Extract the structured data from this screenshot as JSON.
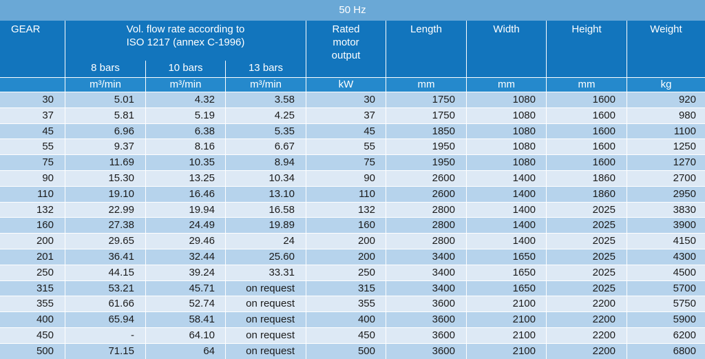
{
  "table": {
    "frequency": "50 Hz",
    "headers": {
      "gear": "GEAR",
      "flow_line1": "Vol. flow rate according to",
      "flow_line2": "ISO 1217 (annex C-1996)",
      "bar8": "8 bars",
      "bar10": "10 bars",
      "bar13": "13 bars",
      "motor_line1": "Rated",
      "motor_line2": "motor",
      "motor_line3": "output",
      "length": "Length",
      "width": "Width",
      "height": "Height",
      "weight": "Weight"
    },
    "units": {
      "flow8": "m³/min",
      "flow10": "m³/min",
      "flow13": "m³/min",
      "motor": "kW",
      "length": "mm",
      "width": "mm",
      "height": "mm",
      "weight": "kg"
    },
    "rows": [
      {
        "gear": "30",
        "f8": "5.01",
        "f10": "4.32",
        "f13": "3.58",
        "kw": "30",
        "length": "1750",
        "width": "1080",
        "height": "1600",
        "weight": "920"
      },
      {
        "gear": "37",
        "f8": "5.81",
        "f10": "5.19",
        "f13": "4.25",
        "kw": "37",
        "length": "1750",
        "width": "1080",
        "height": "1600",
        "weight": "980"
      },
      {
        "gear": "45",
        "f8": "6.96",
        "f10": "6.38",
        "f13": "5.35",
        "kw": "45",
        "length": "1850",
        "width": "1080",
        "height": "1600",
        "weight": "1100"
      },
      {
        "gear": "55",
        "f8": "9.37",
        "f10": "8.16",
        "f13": "6.67",
        "kw": "55",
        "length": "1950",
        "width": "1080",
        "height": "1600",
        "weight": "1250"
      },
      {
        "gear": "75",
        "f8": "11.69",
        "f10": "10.35",
        "f13": "8.94",
        "kw": "75",
        "length": "1950",
        "width": "1080",
        "height": "1600",
        "weight": "1270"
      },
      {
        "gear": "90",
        "f8": "15.30",
        "f10": "13.25",
        "f13": "10.34",
        "kw": "90",
        "length": "2600",
        "width": "1400",
        "height": "1860",
        "weight": "2700"
      },
      {
        "gear": "110",
        "f8": "19.10",
        "f10": "16.46",
        "f13": "13.10",
        "kw": "110",
        "length": "2600",
        "width": "1400",
        "height": "1860",
        "weight": "2950"
      },
      {
        "gear": "132",
        "f8": "22.99",
        "f10": "19.94",
        "f13": "16.58",
        "kw": "132",
        "length": "2800",
        "width": "1400",
        "height": "2025",
        "weight": "3830"
      },
      {
        "gear": "160",
        "f8": "27.38",
        "f10": "24.49",
        "f13": "19.89",
        "kw": "160",
        "length": "2800",
        "width": "1400",
        "height": "2025",
        "weight": "3900"
      },
      {
        "gear": "200",
        "f8": "29.65",
        "f10": "29.46",
        "f13": "24",
        "kw": "200",
        "length": "2800",
        "width": "1400",
        "height": "2025",
        "weight": "4150"
      },
      {
        "gear": "201",
        "f8": "36.41",
        "f10": "32.44",
        "f13": "25.60",
        "kw": "200",
        "length": "3400",
        "width": "1650",
        "height": "2025",
        "weight": "4300"
      },
      {
        "gear": "250",
        "f8": "44.15",
        "f10": "39.24",
        "f13": "33.31",
        "kw": "250",
        "length": "3400",
        "width": "1650",
        "height": "2025",
        "weight": "4500"
      },
      {
        "gear": "315",
        "f8": "53.21",
        "f10": "45.71",
        "f13": "on request",
        "kw": "315",
        "length": "3400",
        "width": "1650",
        "height": "2025",
        "weight": "5700"
      },
      {
        "gear": "355",
        "f8": "61.66",
        "f10": "52.74",
        "f13": "on request",
        "kw": "355",
        "length": "3600",
        "width": "2100",
        "height": "2200",
        "weight": "5750"
      },
      {
        "gear": "400",
        "f8": "65.94",
        "f10": "58.41",
        "f13": "on request",
        "kw": "400",
        "length": "3600",
        "width": "2100",
        "height": "2200",
        "weight": "5900"
      },
      {
        "gear": "450",
        "f8": "-",
        "f10": "64.10",
        "f13": "on request",
        "kw": "450",
        "length": "3600",
        "width": "2100",
        "height": "2200",
        "weight": "6200"
      },
      {
        "gear": "500",
        "f8": "71.15",
        "f10": "64",
        "f13": "on request",
        "kw": "500",
        "length": "3600",
        "width": "2100",
        "height": "2200",
        "weight": "6800"
      }
    ]
  }
}
